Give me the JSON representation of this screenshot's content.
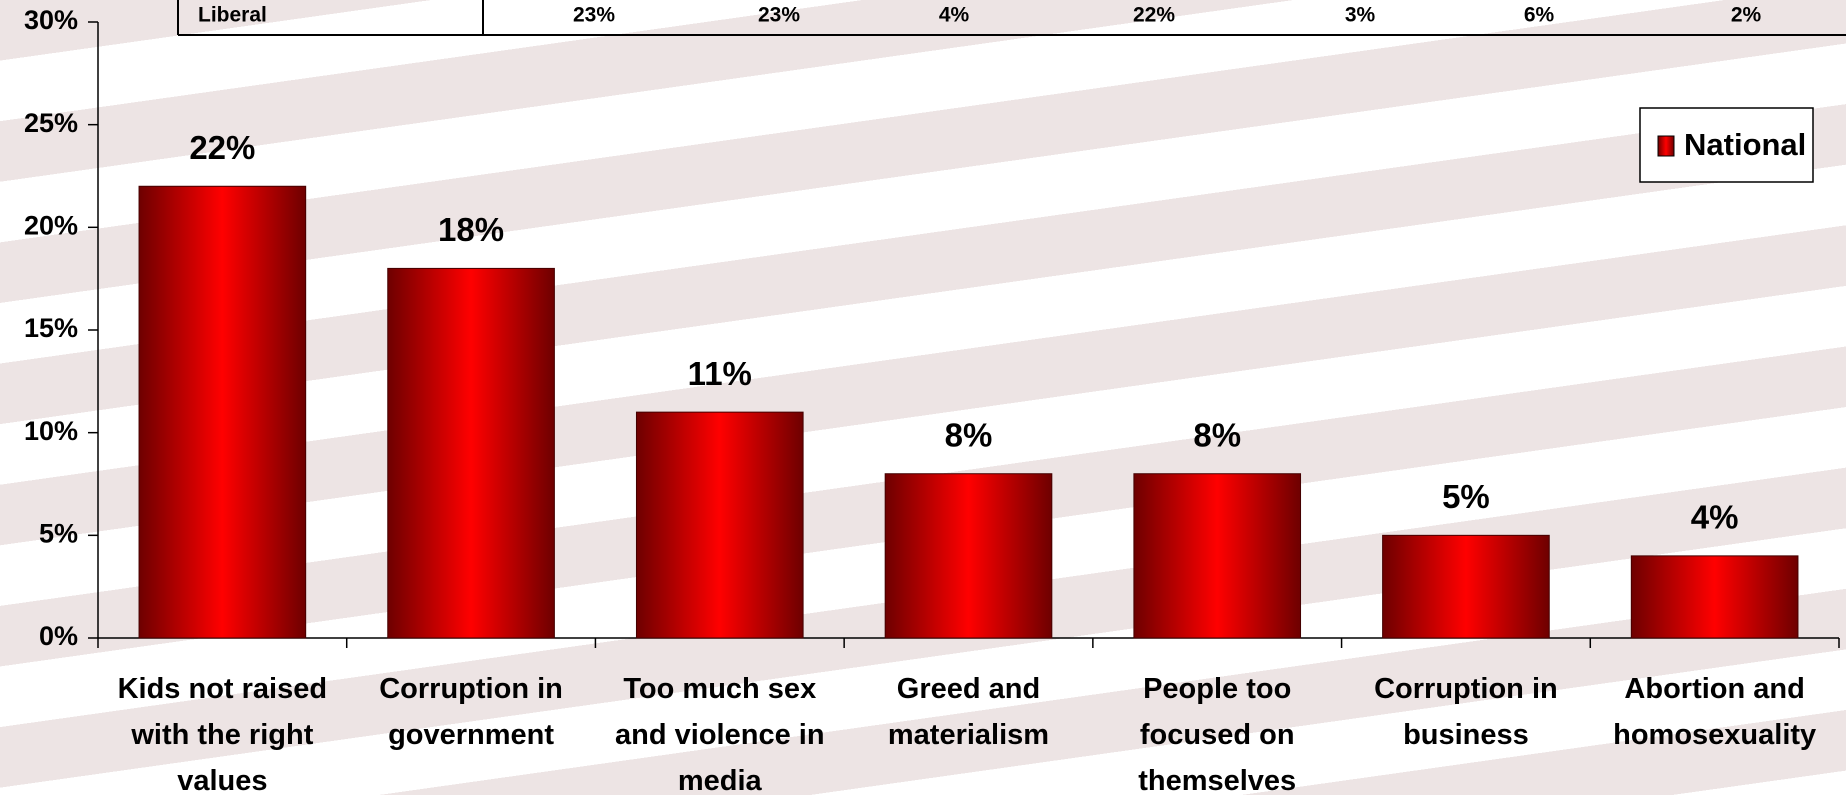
{
  "chart_data": {
    "type": "bar",
    "categories": [
      "Kids not raised with the right values",
      "Corruption in government",
      "Too much sex and violence in media",
      "Greed and materialism",
      "People too focused on themselves",
      "Corruption in business",
      "Abortion and homosexuality"
    ],
    "series": [
      {
        "name": "National",
        "color": "#ff0000",
        "values": [
          22,
          18,
          11,
          8,
          8,
          5,
          4
        ],
        "value_labels": [
          "22%",
          "18%",
          "11%",
          "8%",
          "8%",
          "5%",
          "4%"
        ]
      }
    ],
    "ylim": [
      0,
      30
    ],
    "yticks": [
      {
        "value": 0,
        "label": "0%"
      },
      {
        "value": 5,
        "label": "5%"
      },
      {
        "value": 10,
        "label": "10%"
      },
      {
        "value": 15,
        "label": "15%"
      },
      {
        "value": 20,
        "label": "20%"
      },
      {
        "value": 25,
        "label": "25%"
      },
      {
        "value": 30,
        "label": "30%"
      }
    ],
    "legend": "top-right"
  },
  "table": {
    "rows": [
      [
        "Liberal",
        "23%",
        "23%",
        "4%",
        "22%",
        "3%",
        "6%",
        "2%"
      ]
    ]
  }
}
